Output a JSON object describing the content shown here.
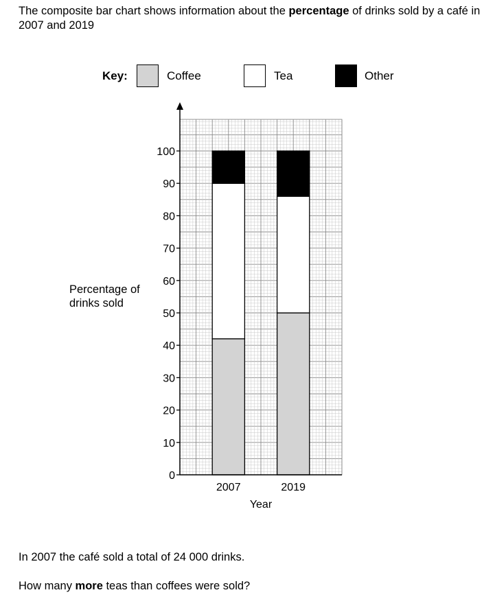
{
  "intro": {
    "part1": "The composite bar chart shows information about the ",
    "bold": "percentage",
    "part2": " of drinks sold by a café in 2007 and 2019"
  },
  "key": {
    "label": "Key:",
    "items": [
      {
        "label": "Coffee",
        "color": "#d3d3d3"
      },
      {
        "label": "Tea",
        "color": "#ffffff"
      },
      {
        "label": "Other",
        "color": "#000000"
      }
    ]
  },
  "chart_data": {
    "type": "bar",
    "stacked": true,
    "categories": [
      "2007",
      "2019"
    ],
    "series": [
      {
        "name": "Coffee",
        "values": [
          42,
          50
        ],
        "color": "#d3d3d3"
      },
      {
        "name": "Tea",
        "values": [
          48,
          36
        ],
        "color": "#ffffff"
      },
      {
        "name": "Other",
        "values": [
          10,
          14
        ],
        "color": "#000000"
      }
    ],
    "xlabel": "Year",
    "ylabel": "Percentage of\ndrinks sold",
    "ylim": [
      0,
      100
    ],
    "yticks": [
      0,
      10,
      20,
      30,
      40,
      50,
      60,
      70,
      80,
      90,
      100
    ],
    "grid": true
  },
  "question": {
    "line1": "In 2007 the café sold a total of 24 000 drinks.",
    "line2_part1": "How many ",
    "line2_bold": "more",
    "line2_part2": " teas than coffees were sold?"
  }
}
